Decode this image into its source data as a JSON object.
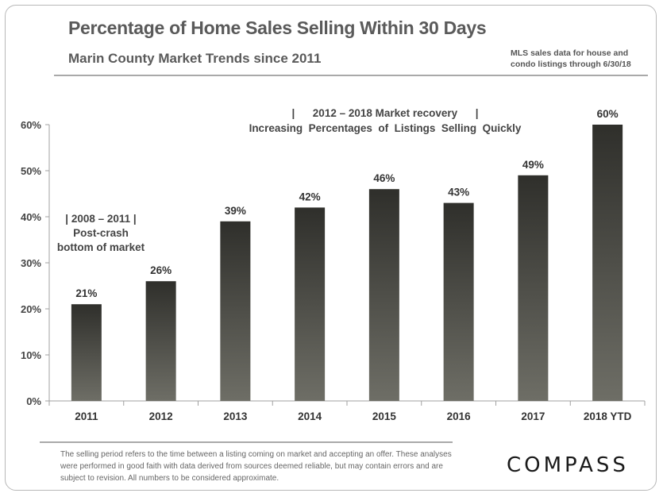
{
  "header": {
    "title": "Percentage of Home Sales Selling Within 30 Days",
    "subtitle": "Marin County Market Trends since 2011",
    "source_line1": "MLS sales data for house and",
    "source_line2": "condo listings through 6/30/18"
  },
  "annotations": {
    "left_line1": "| 2008 – 2011 |",
    "left_line2": "Post-crash",
    "left_line3": "bottom of market",
    "top_line1": "|      2012 – 2018 Market recovery      |",
    "top_line2": "Increasing  Percentages  of  Listings  Selling  Quickly"
  },
  "footer": {
    "disclaimer": "The selling period refers to the time between a listing coming on market and accepting an offer. These analyses were performed in good faith with data derived from sources deemed reliable, but may contain errors and are subject to revision. All numbers to be considered approximate.",
    "logo_text": "COMPASS"
  },
  "chart_data": {
    "type": "bar",
    "title": "Percentage of Home Sales Selling Within 30 Days",
    "subtitle": "Marin County Market Trends since 2011",
    "xlabel": "",
    "ylabel": "",
    "categories": [
      "2011",
      "2012",
      "2013",
      "2014",
      "2015",
      "2016",
      "2017",
      "2018 YTD"
    ],
    "values": [
      21,
      26,
      39,
      42,
      46,
      43,
      49,
      60
    ],
    "value_labels": [
      "21%",
      "26%",
      "39%",
      "42%",
      "46%",
      "43%",
      "49%",
      "60%"
    ],
    "yticks": [
      "0%",
      "10%",
      "20%",
      "30%",
      "40%",
      "50%",
      "60%"
    ],
    "ylim": [
      0,
      60
    ],
    "grid": false,
    "colors": {
      "bar_top": "#2f2f2b",
      "bar_bottom": "#6e6e66",
      "axis": "#a0a0a0"
    }
  }
}
